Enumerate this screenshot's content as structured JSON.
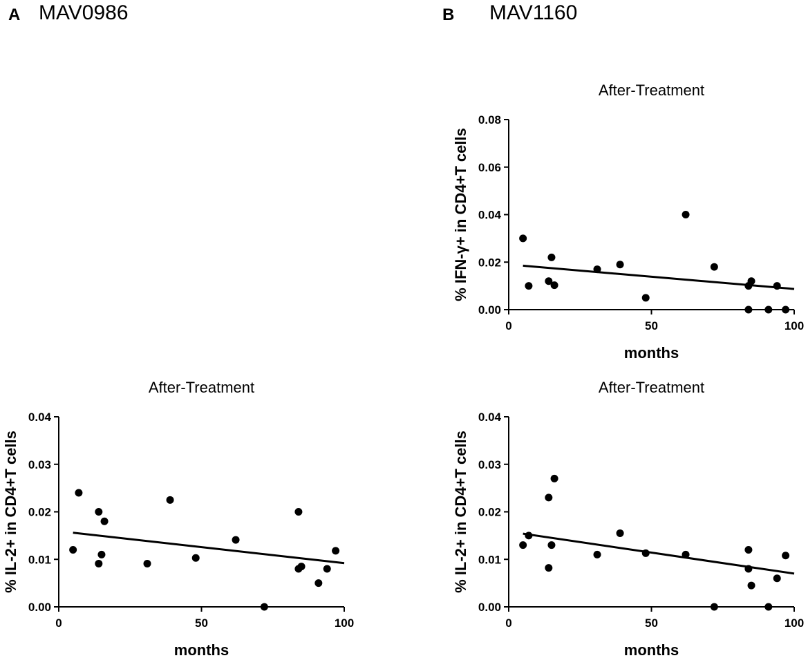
{
  "panels": {
    "a": {
      "letter": "A",
      "name": "MAV0986"
    },
    "b": {
      "letter": "B",
      "name": "MAV1160"
    }
  },
  "chart_data": [
    {
      "id": "b-ifn",
      "type": "scatter",
      "title": "After-Treatment",
      "xlabel": "months",
      "ylabel": "% IFN-γ+ in CD4+T cells",
      "xlim": [
        0,
        100
      ],
      "ylim": [
        0,
        0.08
      ],
      "xticks": [
        "0",
        "50",
        "100"
      ],
      "yticks": [
        "0.00",
        "0.02",
        "0.04",
        "0.06",
        "0.08"
      ],
      "x": [
        5,
        7,
        14,
        15,
        16,
        31,
        39,
        48,
        62,
        72,
        84,
        84,
        85,
        91,
        94,
        97
      ],
      "y": [
        0.03,
        0.01,
        0.012,
        0.022,
        0.0103,
        0.017,
        0.019,
        0.005,
        0.04,
        0.018,
        0.0,
        0.01,
        0.012,
        0.0,
        0.01,
        0.0
      ],
      "fit": {
        "x": [
          5,
          100
        ],
        "y": [
          0.0185,
          0.0087
        ]
      }
    },
    {
      "id": "a-il2",
      "type": "scatter",
      "title": "After-Treatment",
      "xlabel": "months",
      "ylabel": "% IL-2+ in CD4+T cells",
      "xlim": [
        0,
        100
      ],
      "ylim": [
        0,
        0.04
      ],
      "xticks": [
        "0",
        "50",
        "100"
      ],
      "yticks": [
        "0.00",
        "0.01",
        "0.02",
        "0.03",
        "0.04"
      ],
      "x": [
        5,
        7,
        14,
        14,
        15,
        16,
        31,
        39,
        48,
        62,
        72,
        84,
        84,
        85,
        91,
        94,
        97
      ],
      "y": [
        0.012,
        0.024,
        0.02,
        0.0091,
        0.011,
        0.018,
        0.0091,
        0.0225,
        0.0103,
        0.0141,
        0.0,
        0.02,
        0.008,
        0.0085,
        0.005,
        0.008,
        0.0118
      ],
      "fit": {
        "x": [
          5,
          100
        ],
        "y": [
          0.0156,
          0.0092
        ]
      }
    },
    {
      "id": "b-il2",
      "type": "scatter",
      "title": "After-Treatment",
      "xlabel": "months",
      "ylabel": "% IL-2+ in CD4+T cells",
      "xlim": [
        0,
        100
      ],
      "ylim": [
        0,
        0.04
      ],
      "xticks": [
        "0",
        "50",
        "100"
      ],
      "yticks": [
        "0.00",
        "0.01",
        "0.02",
        "0.03",
        "0.04"
      ],
      "x": [
        5,
        7,
        14,
        14,
        15,
        16,
        31,
        39,
        48,
        62,
        72,
        84,
        84,
        85,
        91,
        94,
        97
      ],
      "y": [
        0.013,
        0.015,
        0.023,
        0.0082,
        0.013,
        0.027,
        0.011,
        0.0155,
        0.0113,
        0.011,
        0.0,
        0.012,
        0.008,
        0.0045,
        0.0,
        0.006,
        0.0108
      ],
      "fit": {
        "x": [
          5,
          100
        ],
        "y": [
          0.0154,
          0.007
        ]
      }
    }
  ]
}
